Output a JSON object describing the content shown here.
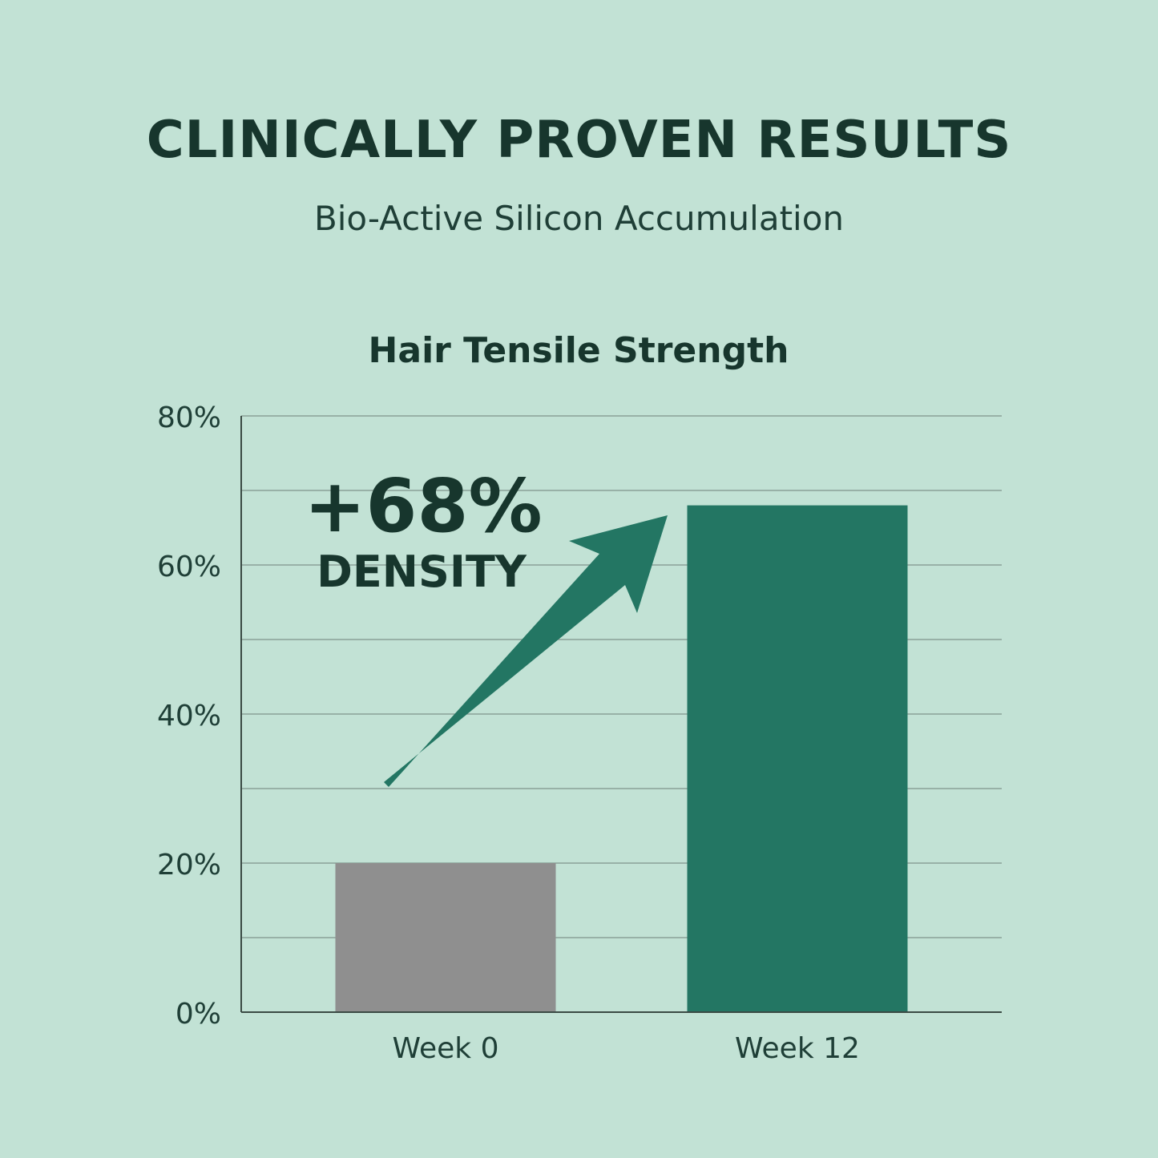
{
  "header": {
    "title": "CLINICALLY PROVEN RESULTS",
    "subtitle": "Bio-Active Silicon Accumulation"
  },
  "colors": {
    "background": "#c2e2d5",
    "week0_bar": "#8f8f8f",
    "week12_bar": "#237663",
    "arrow": "#237663",
    "gridline": "#7f948c",
    "axis": "#3a4a44",
    "text_dark": "#17362d"
  },
  "chart_data": {
    "type": "bar",
    "title": "Hair Tensile Strength",
    "xlabel": "",
    "ylabel": "",
    "categories": [
      "Week 0",
      "Week 12"
    ],
    "values": [
      20,
      68
    ],
    "ylim": [
      0,
      80
    ],
    "yticks": [
      0,
      20,
      40,
      60,
      80
    ],
    "ytick_labels": [
      "0%",
      "20%",
      "40%",
      "60%",
      "80%"
    ],
    "minor_gridlines": [
      10,
      30,
      50,
      70
    ],
    "grid": true,
    "annotation": {
      "value_text": "+68%",
      "label_text": "DENSITY",
      "arrow_icon": "up-right-arrow-icon"
    }
  }
}
